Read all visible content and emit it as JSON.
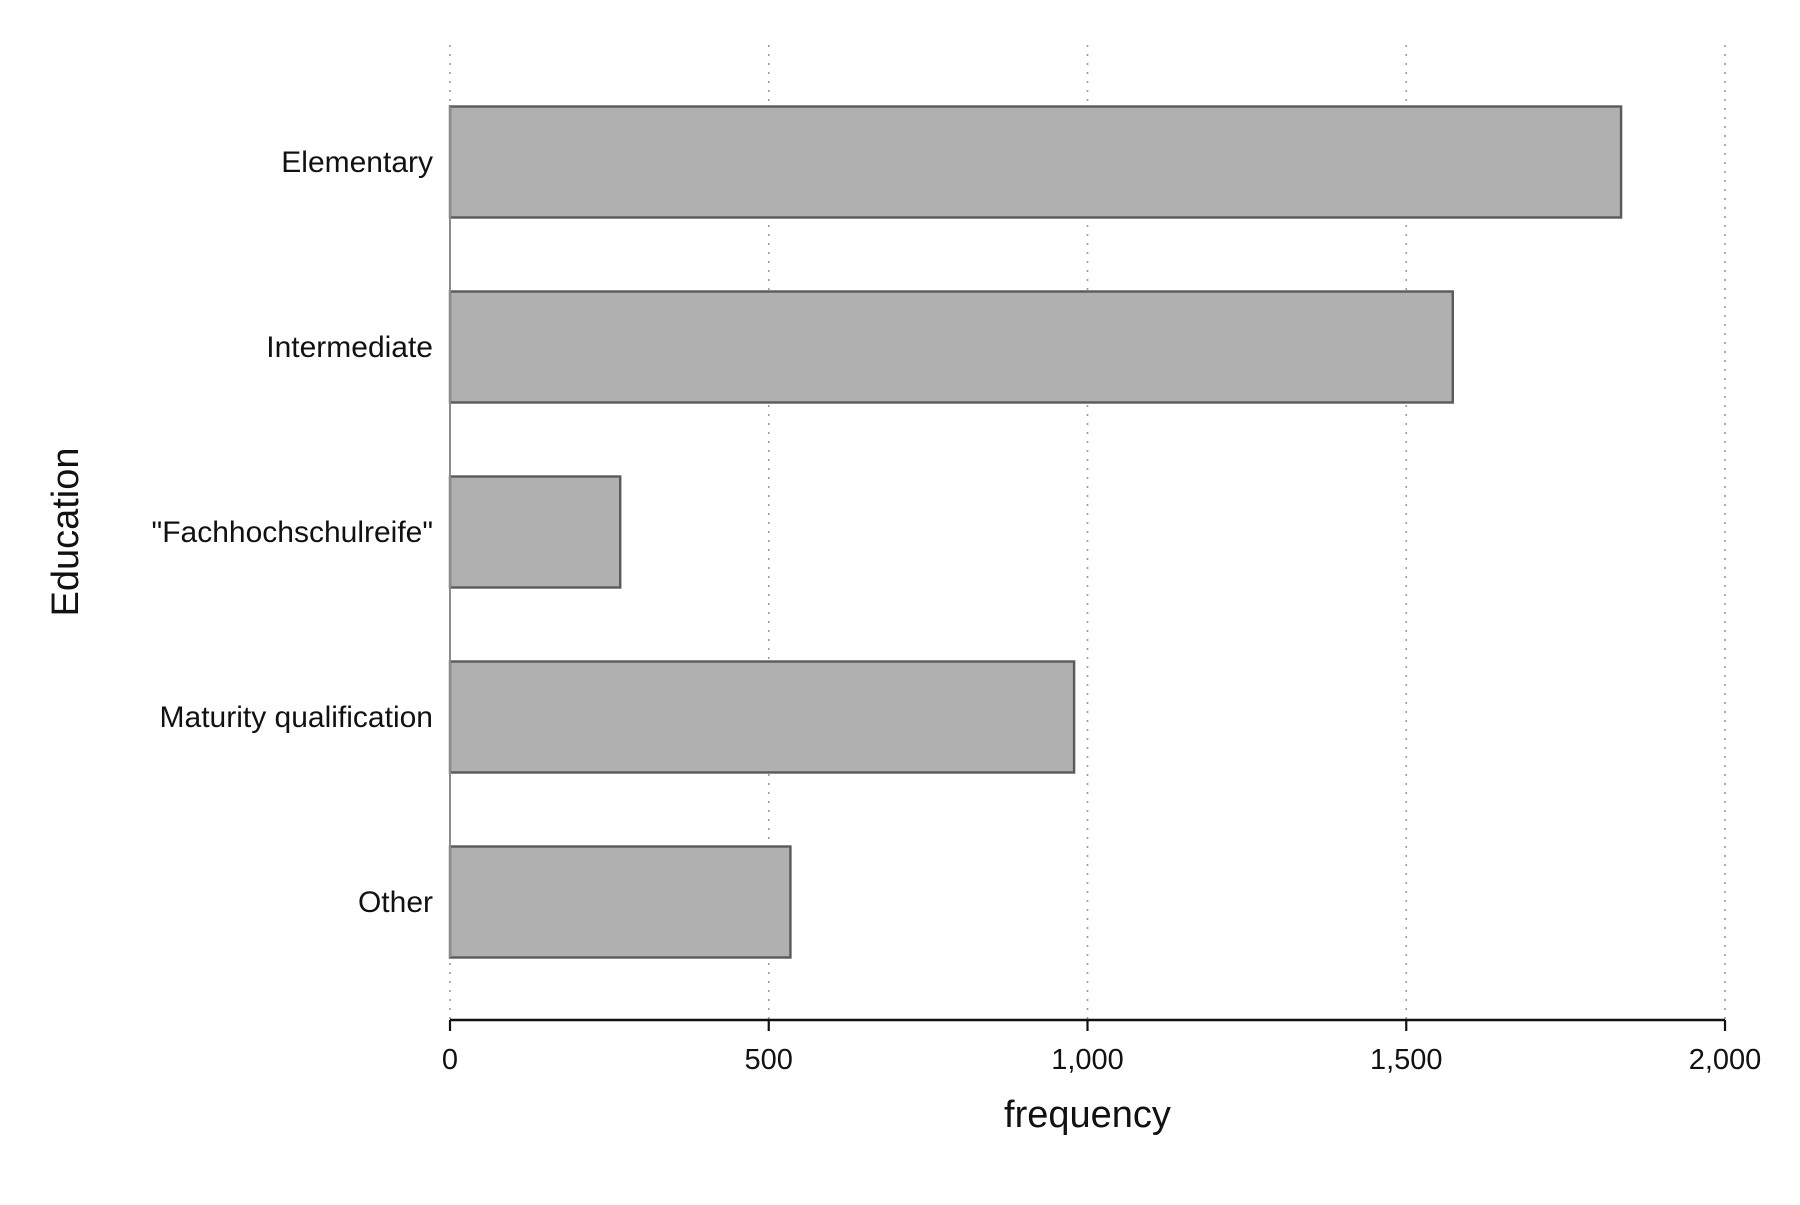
{
  "chart_data": {
    "type": "bar",
    "orientation": "horizontal",
    "categories": [
      "Elementary",
      "Intermediate",
      "\"Fachhochschulreife\"",
      "Maturity qualification",
      "Other"
    ],
    "values": [
      1837,
      1573,
      267,
      979,
      534
    ],
    "xlabel": "frequency",
    "ylabel": "Education",
    "xlim": [
      0,
      2000
    ],
    "xticks": [
      0,
      500,
      1000,
      1500,
      2000
    ],
    "xtick_labels": [
      "0",
      "500",
      "1,000",
      "1,500",
      "2,000"
    ],
    "grid": "vertical dotted",
    "bar_fill": "#b0b0b0",
    "bar_edge": "#5a5a5a"
  }
}
